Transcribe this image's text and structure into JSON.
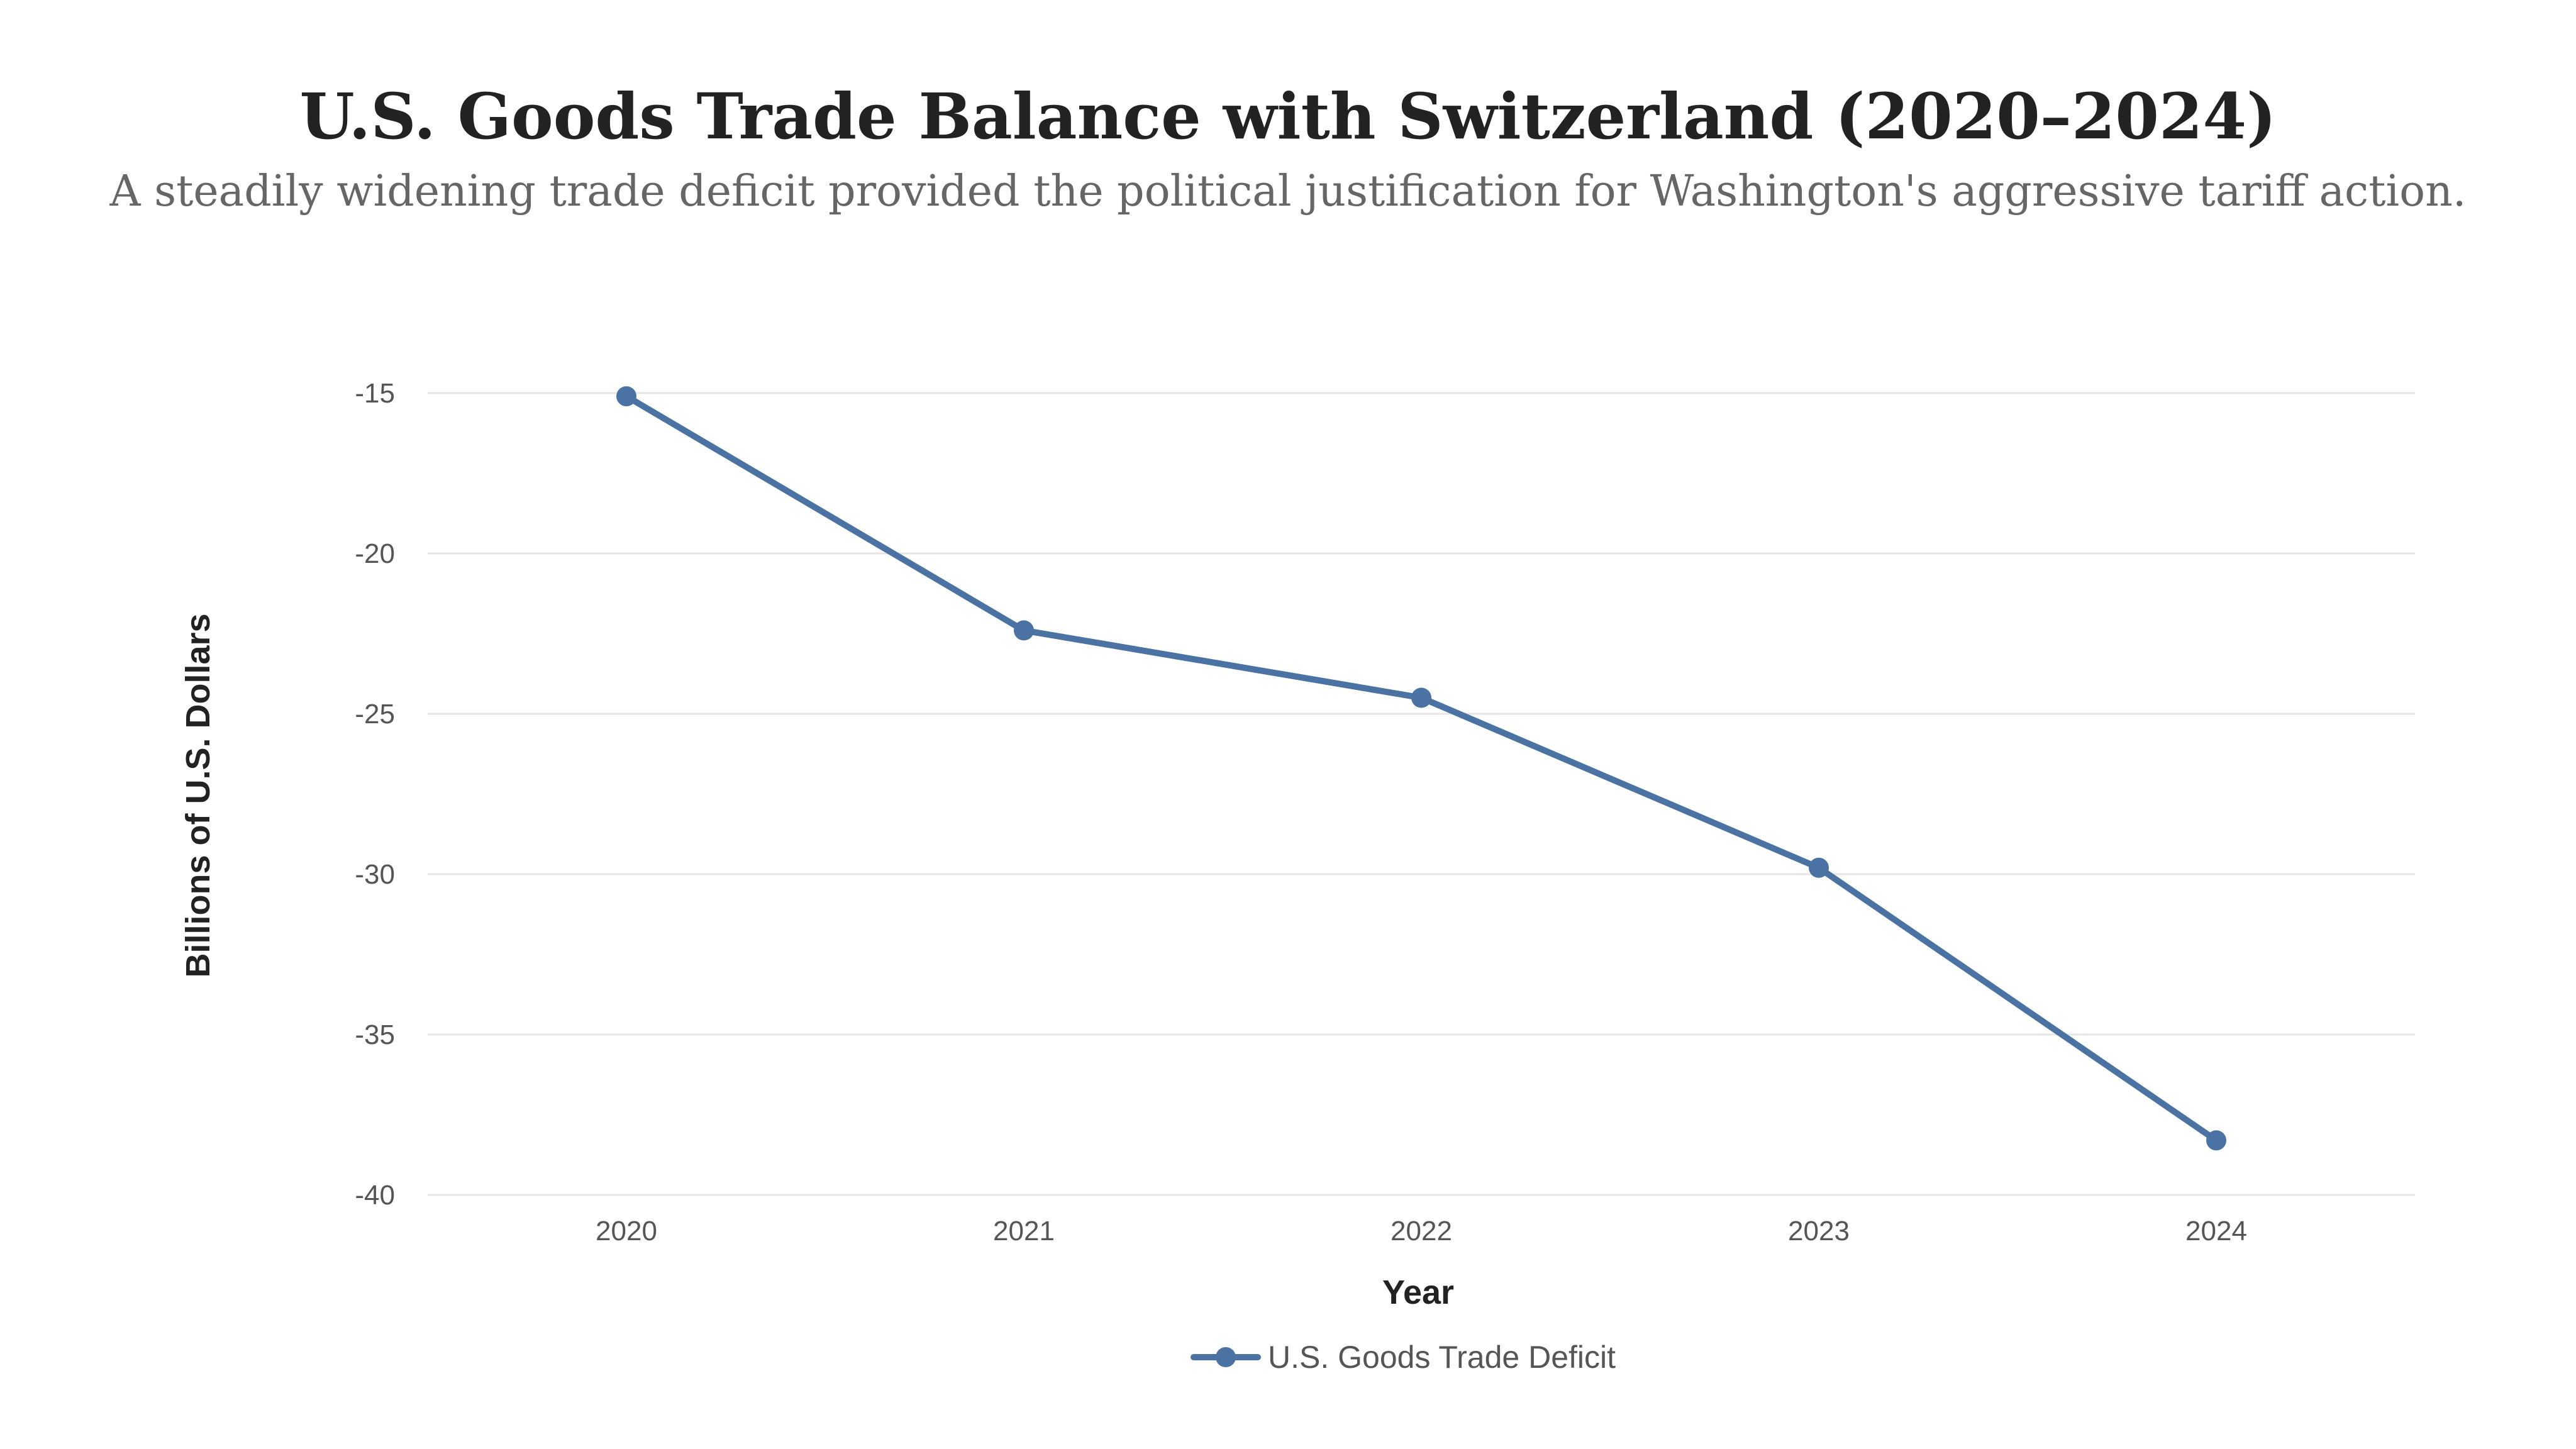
{
  "chart_data": {
    "type": "line",
    "title": "U.S. Goods Trade Balance with Switzerland (2020–2024)",
    "subtitle": "A steadily widening trade deficit provided the political justification for Washington's aggressive tariff action.",
    "xlabel": "Year",
    "ylabel": "Billions of U.S. Dollars",
    "categories": [
      "2020",
      "2021",
      "2022",
      "2023",
      "2024"
    ],
    "y_ticks": [
      -15,
      -20,
      -25,
      -30,
      -35,
      -40
    ],
    "y_tick_labels": [
      "-15",
      "-20",
      "-25",
      "-30",
      "-35",
      "-40"
    ],
    "ylim": [
      -40,
      -15
    ],
    "grid": true,
    "legend_position": "bottom-center",
    "series": [
      {
        "name": "U.S. Goods Trade Deficit",
        "color": "#4a72a3",
        "values": [
          -15.1,
          -22.4,
          -24.5,
          -29.8,
          -38.3
        ]
      }
    ]
  }
}
